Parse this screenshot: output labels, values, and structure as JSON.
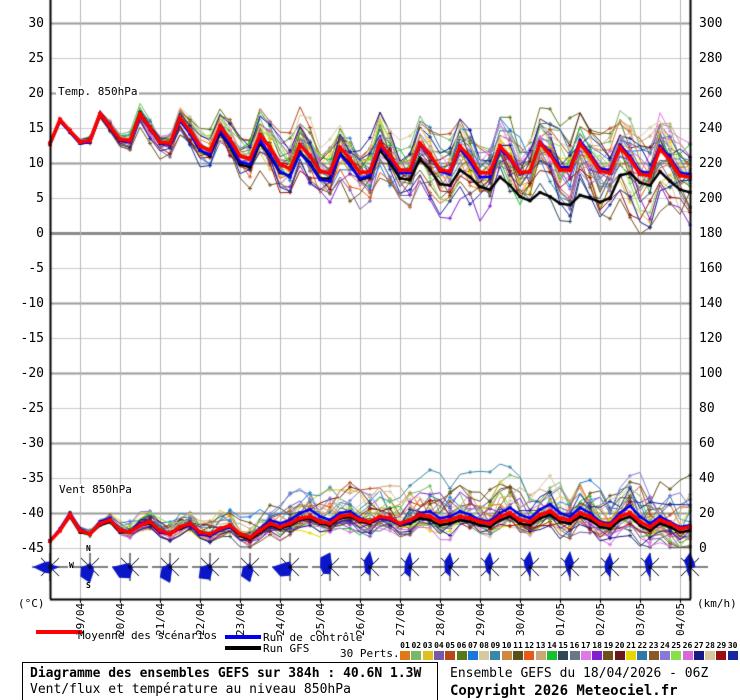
{
  "labels": {
    "temp_series": "Temp. 850hPa",
    "wind_series": "Vent 850hPa",
    "left_unit": "(°C)",
    "right_unit": "(km/h)",
    "compass": {
      "n": "N",
      "w": "W",
      "s": "S"
    }
  },
  "legend": {
    "mean": "Moyenne des scénarios",
    "control": "Run de contrôle",
    "gfs": "Run GFS",
    "perts": "30 Perts."
  },
  "axes": {
    "left_ticks": [
      30,
      25,
      20,
      15,
      10,
      5,
      0,
      -5,
      -10,
      -15,
      -20,
      -25,
      -30,
      -35,
      -40,
      -45
    ],
    "right_ticks": [
      300,
      280,
      260,
      240,
      220,
      200,
      180,
      160,
      140,
      120,
      100,
      80,
      60,
      40,
      20,
      0
    ],
    "dates": [
      "19/04",
      "20/04",
      "21/04",
      "22/04",
      "23/04",
      "24/04",
      "25/04",
      "26/04",
      "27/04",
      "28/04",
      "29/04",
      "30/04",
      "01/05",
      "02/05",
      "03/05",
      "04/05"
    ]
  },
  "perts": {
    "numbers": [
      "01",
      "02",
      "03",
      "04",
      "05",
      "06",
      "07",
      "08",
      "09",
      "10",
      "11",
      "12",
      "13",
      "14",
      "15",
      "16",
      "17",
      "18",
      "19",
      "20",
      "21",
      "22",
      "23",
      "24",
      "25",
      "26",
      "27",
      "28",
      "29",
      "30"
    ],
    "colors": [
      "#e07818",
      "#78b868",
      "#e0c020",
      "#7858a8",
      "#b84818",
      "#587818",
      "#1878e0",
      "#d8c8a0",
      "#3888a8",
      "#d08840",
      "#585018",
      "#e85818",
      "#c8a878",
      "#18c030",
      "#304858",
      "#687888",
      "#e078e8",
      "#8020d0",
      "#705018",
      "#681818",
      "#e8d800",
      "#3078a8",
      "#885828",
      "#8878d8",
      "#88e048",
      "#d868d8",
      "#181888",
      "#d8c8a0",
      "#981010",
      "#1828a0"
    ]
  },
  "colors": {
    "mean": "#ff0000",
    "control": "#0000ee",
    "gfs": "#000000",
    "rose_fill": "#0a16c8"
  },
  "info_box": {
    "line1": "Diagramme des ensembles GEFS sur 384h : 40.6N 1.3W",
    "line2": "Vent/flux et température au niveau 850hPa"
  },
  "credits": {
    "run_info": "Ensemble GEFS du 18/04/2026 - 06Z",
    "copyright": "Copyright 2026 Meteociel.fr"
  },
  "chart_data": {
    "type": "line",
    "title": "Diagramme des ensembles GEFS sur 384h : 40.6N 1.3W",
    "x": {
      "run_start": "18/04 06Z",
      "hours_total": 384,
      "step_hours": 6,
      "n_points": 65
    },
    "temp_850hPa": {
      "unit": "°C",
      "axis_range_view": [
        -45,
        30
      ],
      "mean": [
        12.8,
        16.2,
        14.6,
        13.0,
        13.2,
        17.0,
        15.2,
        13.4,
        13.2,
        17.0,
        15.0,
        13.0,
        12.8,
        16.4,
        14.6,
        12.4,
        11.8,
        15.2,
        13.4,
        11.0,
        10.6,
        14.0,
        12.2,
        9.8,
        9.2,
        12.6,
        11.0,
        8.8,
        8.6,
        12.2,
        10.6,
        8.6,
        8.8,
        12.8,
        11.0,
        9.0,
        9.0,
        12.8,
        11.2,
        9.0,
        8.8,
        12.4,
        10.8,
        8.6,
        8.6,
        12.4,
        10.8,
        8.6,
        8.8,
        12.8,
        11.2,
        9.0,
        9.0,
        12.8,
        11.0,
        8.8,
        8.6,
        12.2,
        10.6,
        8.4,
        8.2,
        12.0,
        10.4,
        8.2,
        8.0
      ],
      "control": [
        12.8,
        16.0,
        14.4,
        12.8,
        13.0,
        16.8,
        15.0,
        13.2,
        13.0,
        16.8,
        14.8,
        12.8,
        12.6,
        16.0,
        14.2,
        11.8,
        11.2,
        14.6,
        12.6,
        10.2,
        9.8,
        13.2,
        11.2,
        8.8,
        8.0,
        11.4,
        9.8,
        7.6,
        7.4,
        11.2,
        9.6,
        7.8,
        8.2,
        12.4,
        10.6,
        8.6,
        8.6,
        12.6,
        11.0,
        8.8,
        8.4,
        12.0,
        10.2,
        8.0,
        8.0,
        12.0,
        10.6,
        8.4,
        8.8,
        13.0,
        11.6,
        9.4,
        9.4,
        13.2,
        11.4,
        9.2,
        9.0,
        12.6,
        11.0,
        8.8,
        8.6,
        12.4,
        10.8,
        8.6,
        8.4
      ],
      "gfs": [
        12.6,
        16.0,
        14.4,
        12.8,
        13.0,
        16.8,
        15.0,
        13.2,
        13.2,
        17.2,
        15.2,
        13.0,
        12.8,
        16.2,
        14.2,
        11.8,
        11.0,
        14.4,
        12.4,
        9.8,
        9.4,
        12.8,
        11.0,
        8.6,
        8.2,
        11.6,
        10.0,
        7.8,
        7.8,
        11.4,
        9.8,
        7.6,
        8.0,
        11.8,
        10.0,
        7.8,
        7.6,
        10.6,
        9.0,
        7.0,
        6.8,
        9.0,
        8.0,
        6.6,
        6.2,
        8.0,
        6.8,
        5.2,
        4.6,
        5.8,
        5.2,
        4.2,
        4.0,
        5.4,
        5.0,
        4.4,
        5.0,
        8.2,
        8.6,
        7.2,
        6.8,
        8.8,
        7.4,
        6.2,
        5.8
      ],
      "ensemble_spread_daily": [
        0.5,
        1.0,
        1.5,
        2.2,
        3.2,
        4.2,
        5.0,
        5.5,
        5.8,
        6.0,
        6.2,
        6.5,
        6.5,
        7.0,
        7.0,
        7.5,
        7.5
      ]
    },
    "wind_850hPa": {
      "unit": "km/h",
      "axis_range_view": [
        0,
        300
      ],
      "mean": [
        4,
        10,
        19,
        10,
        8,
        14,
        16,
        10,
        9,
        13,
        15,
        10,
        8,
        12,
        14,
        9,
        8,
        11,
        13,
        8,
        6,
        10,
        14,
        12,
        14,
        17,
        18,
        15,
        14,
        18,
        19,
        16,
        15,
        18,
        17,
        14,
        16,
        19,
        18,
        15,
        16,
        18,
        17,
        15,
        14,
        18,
        20,
        16,
        15,
        19,
        21,
        17,
        16,
        20,
        18,
        14,
        13,
        18,
        20,
        15,
        12,
        16,
        14,
        11,
        12
      ],
      "control": [
        4,
        11,
        20,
        11,
        8,
        15,
        17,
        10,
        9,
        14,
        15,
        9,
        8,
        12,
        13,
        8,
        7,
        10,
        12,
        8,
        6,
        11,
        16,
        14,
        16,
        20,
        22,
        18,
        16,
        20,
        21,
        17,
        15,
        17,
        16,
        13,
        15,
        20,
        21,
        17,
        18,
        21,
        19,
        16,
        15,
        20,
        23,
        19,
        17,
        22,
        25,
        20,
        18,
        23,
        20,
        15,
        14,
        20,
        24,
        18,
        14,
        18,
        15,
        12,
        13
      ],
      "gfs": [
        4,
        10,
        18,
        9,
        8,
        13,
        15,
        9,
        9,
        13,
        14,
        9,
        8,
        11,
        13,
        8,
        7,
        10,
        12,
        7,
        5,
        9,
        13,
        11,
        13,
        16,
        17,
        14,
        13,
        17,
        18,
        15,
        14,
        17,
        16,
        13,
        14,
        17,
        16,
        13,
        14,
        16,
        15,
        13,
        12,
        16,
        18,
        14,
        13,
        17,
        19,
        15,
        14,
        18,
        16,
        12,
        11,
        16,
        18,
        13,
        10,
        14,
        12,
        9,
        10
      ],
      "ensemble_spread_daily": [
        2,
        3,
        4,
        5,
        6,
        8,
        10,
        11,
        12,
        12,
        13,
        13,
        14,
        14,
        15,
        15,
        15
      ]
    },
    "wind_roses": {
      "directions": [
        "N",
        "NE",
        "E",
        "SE",
        "S",
        "SW",
        "W",
        "NW"
      ],
      "interval": "daily at 06Z from 18/04 to 04/05",
      "radii": [
        [
          0.35,
          0.2,
          0.55,
          0.25,
          0.4,
          0.5,
          0.95,
          0.45
        ],
        [
          0.3,
          0.15,
          0.2,
          0.35,
          1.0,
          0.85,
          0.5,
          0.2
        ],
        [
          0.25,
          0.1,
          0.15,
          0.25,
          0.7,
          0.95,
          1.0,
          0.3
        ],
        [
          0.3,
          0.1,
          0.1,
          0.2,
          1.0,
          0.9,
          0.45,
          0.2
        ],
        [
          0.25,
          0.1,
          0.1,
          0.25,
          0.8,
          1.0,
          0.55,
          0.2
        ],
        [
          0.3,
          0.1,
          0.15,
          0.3,
          0.95,
          0.8,
          0.4,
          0.2
        ],
        [
          0.35,
          0.15,
          0.1,
          0.2,
          0.55,
          0.85,
          1.0,
          0.4
        ],
        [
          0.9,
          0.2,
          0.1,
          0.15,
          0.45,
          0.6,
          0.55,
          0.85
        ],
        [
          1.0,
          0.3,
          0.1,
          0.1,
          0.55,
          0.45,
          0.3,
          0.55
        ],
        [
          0.95,
          0.25,
          0.1,
          0.15,
          0.65,
          0.5,
          0.3,
          0.45
        ],
        [
          0.9,
          0.3,
          0.15,
          0.1,
          0.6,
          0.45,
          0.3,
          0.5
        ],
        [
          0.95,
          0.3,
          0.1,
          0.1,
          0.55,
          0.35,
          0.25,
          0.5
        ],
        [
          1.0,
          0.3,
          0.12,
          0.1,
          0.65,
          0.3,
          0.3,
          0.55
        ],
        [
          1.0,
          0.35,
          0.15,
          0.1,
          0.75,
          0.3,
          0.25,
          0.5
        ],
        [
          0.85,
          0.3,
          0.1,
          0.15,
          0.65,
          0.4,
          0.3,
          0.45
        ],
        [
          0.9,
          0.25,
          0.1,
          0.1,
          0.7,
          0.35,
          0.25,
          0.5
        ],
        [
          0.9,
          0.4,
          0.3,
          0.1,
          0.75,
          0.3,
          0.2,
          0.55
        ]
      ]
    }
  }
}
